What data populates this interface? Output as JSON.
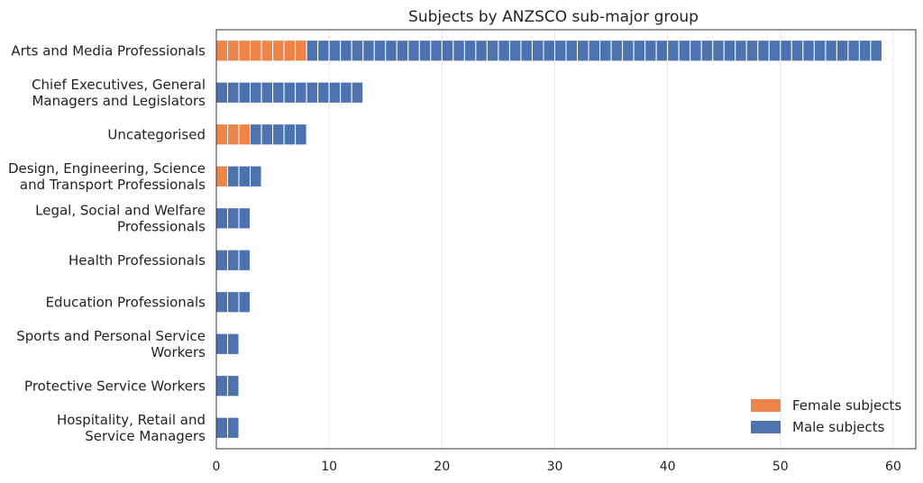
{
  "chart_data": {
    "type": "bar",
    "orientation": "horizontal",
    "stacked": true,
    "title": "Subjects by ANZSCO sub-major group",
    "xlabel": "",
    "ylabel": "",
    "xlim": [
      0,
      62
    ],
    "xticks": [
      0,
      10,
      20,
      30,
      40,
      50,
      60
    ],
    "grid": "vertical",
    "legend_position": "bottom-right",
    "categories": [
      [
        "Arts and Media Professionals"
      ],
      [
        "Chief Executives, General",
        "Managers and Legislators"
      ],
      [
        "Uncategorised"
      ],
      [
        "Design, Engineering, Science",
        "and Transport Professionals"
      ],
      [
        "Legal, Social and Welfare",
        "Professionals"
      ],
      [
        "Health Professionals"
      ],
      [
        "Education Professionals"
      ],
      [
        "Sports and Personal Service",
        "Workers"
      ],
      [
        "Protective Service Workers"
      ],
      [
        "Hospitality, Retail and",
        "Service Managers"
      ]
    ],
    "series": [
      {
        "name": "Female subjects",
        "color": "#ee8447",
        "values": [
          8,
          0,
          3,
          1,
          0,
          0,
          0,
          0,
          0,
          0
        ]
      },
      {
        "name": "Male subjects",
        "color": "#4c72b0",
        "values": [
          51,
          13,
          5,
          3,
          3,
          3,
          3,
          2,
          2,
          2
        ]
      }
    ]
  }
}
